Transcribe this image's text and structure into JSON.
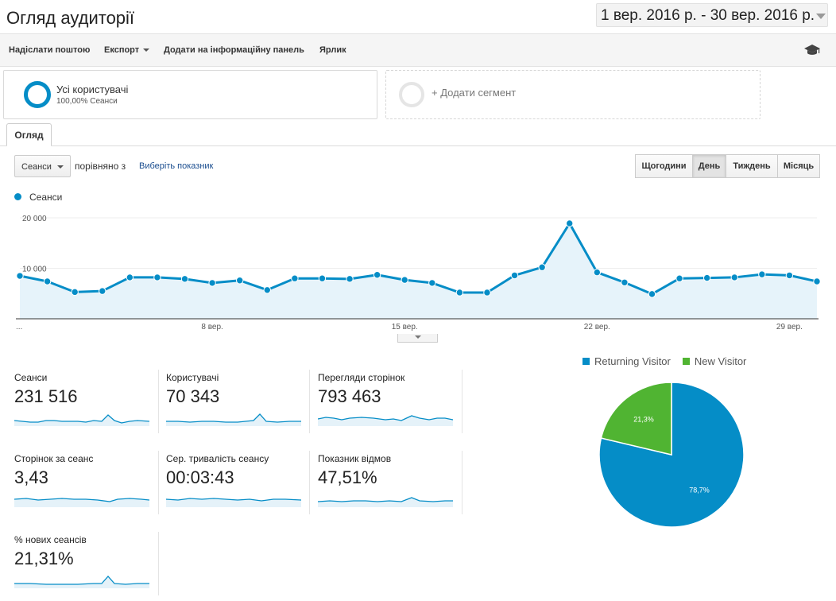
{
  "header": {
    "title": "Огляд аудиторії",
    "date_range": "1 вер. 2016 р. - 30 вер. 2016 р."
  },
  "toolbar": {
    "send_email": "Надіслати поштою",
    "export": "Експорт",
    "add_dashboard": "Додати на інформаційну панель",
    "shortcut": "Ярлик",
    "icon": "graduation-cap-icon"
  },
  "segments": {
    "all_users_name": "Усі користувачі",
    "all_users_share": "100,00% Сеанси",
    "add_segment": "+ Додати сегмент"
  },
  "tabs": {
    "overview": "Огляд"
  },
  "controls": {
    "metric": "Сеанси",
    "compared_with": "порівняно з",
    "choose_metric": "Виберіть показник",
    "periods": [
      "Щогодини",
      "День",
      "Тиждень",
      "Місяць"
    ],
    "active_period": "День"
  },
  "colors": {
    "accent": "#058dc7",
    "returning": "#058dc7",
    "new": "#50b432"
  },
  "chart_data": [
    {
      "type": "area",
      "series": [
        {
          "name": "Сеанси",
          "values": [
            8500,
            7400,
            5300,
            5500,
            8200,
            8200,
            7900,
            7100,
            7600,
            5700,
            8000,
            8000,
            7900,
            8700,
            7700,
            7100,
            5200,
            5200,
            8600,
            10200,
            18900,
            9200,
            7200,
            4900,
            8000,
            8100,
            8200,
            8800,
            8600,
            7400
          ]
        }
      ],
      "x": [
        1,
        2,
        3,
        4,
        5,
        6,
        7,
        8,
        9,
        10,
        11,
        12,
        13,
        14,
        15,
        16,
        17,
        18,
        19,
        20,
        21,
        22,
        23,
        24,
        25,
        26,
        27,
        28,
        29,
        30
      ],
      "x_tick_labels": [
        "...",
        "8 вер.",
        "15 вер.",
        "22 вер.",
        "29 вер."
      ],
      "y_tick_labels": [
        "20 000",
        "10 000"
      ],
      "ylim": [
        0,
        20000
      ],
      "legend": "top-left",
      "grid": true
    },
    {
      "type": "pie",
      "labels": [
        "Returning Visitor",
        "New Visitor"
      ],
      "values": [
        78.7,
        21.3
      ],
      "value_labels": [
        "78,7%",
        "21,3%"
      ],
      "legend": "top"
    }
  ],
  "scorecards": [
    {
      "label": "Сеанси",
      "value": "231 516"
    },
    {
      "label": "Користувачі",
      "value": "70 343"
    },
    {
      "label": "Перегляди сторінок",
      "value": "793 463"
    },
    {
      "label": "Сторінок за сеанс",
      "value": "3,43"
    },
    {
      "label": "Сер. тривалість сеансу",
      "value": "00:03:43"
    },
    {
      "label": "Показник відмов",
      "value": "47,51%"
    },
    {
      "label": "% нових сеансів",
      "value": "21,31%"
    }
  ]
}
